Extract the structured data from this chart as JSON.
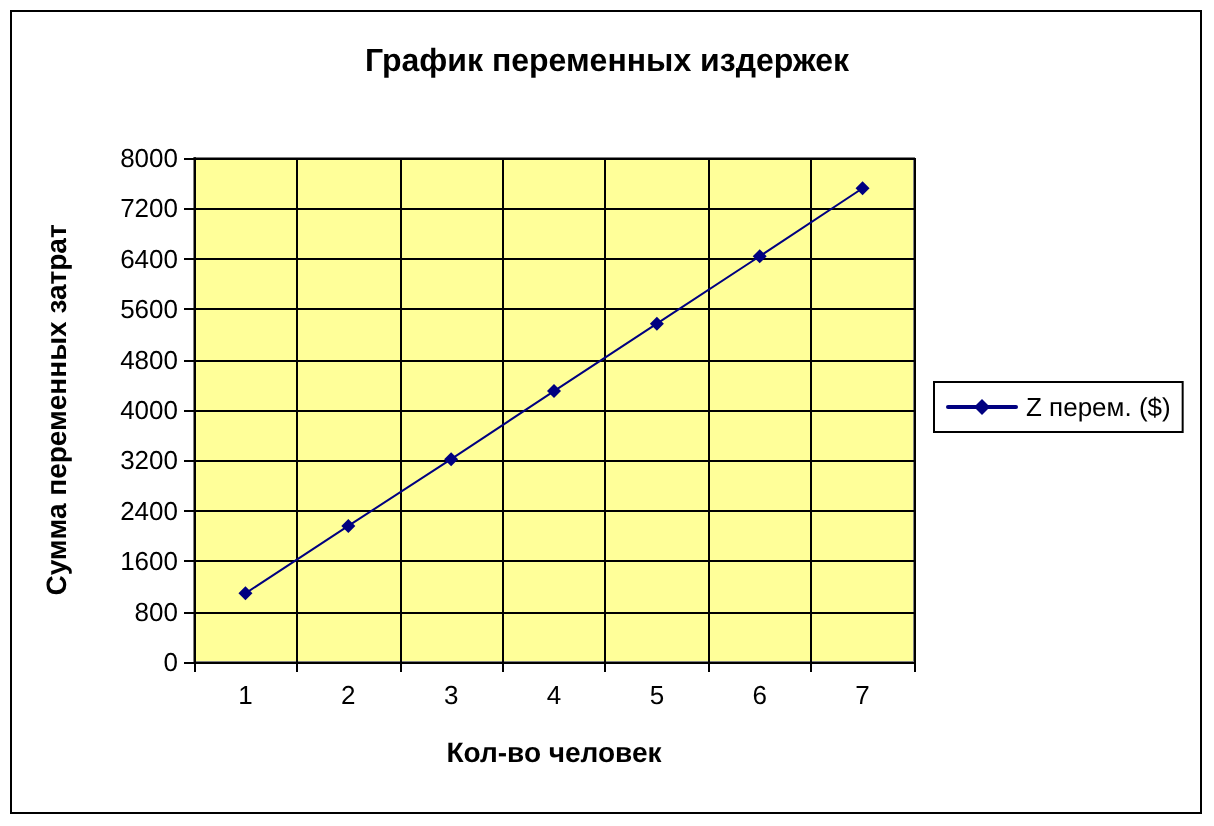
{
  "chart_data": {
    "type": "line",
    "title": "График переменных издержек",
    "xlabel": "Кол-во человек",
    "ylabel": "Сумма переменных затрат",
    "categories": [
      "1",
      "2",
      "3",
      "4",
      "5",
      "6",
      "7"
    ],
    "series": [
      {
        "name": "Z перем. ($)",
        "color": "#000080",
        "values": [
          1090,
          2160,
          3220,
          4300,
          5370,
          6440,
          7520
        ]
      }
    ],
    "ylim": [
      0,
      8000
    ],
    "yticks": [
      0,
      800,
      1600,
      2400,
      3200,
      4000,
      4800,
      5600,
      6400,
      7200,
      8000
    ],
    "grid": true,
    "legend": "right",
    "marker": "diamond",
    "line_style": "solid"
  }
}
